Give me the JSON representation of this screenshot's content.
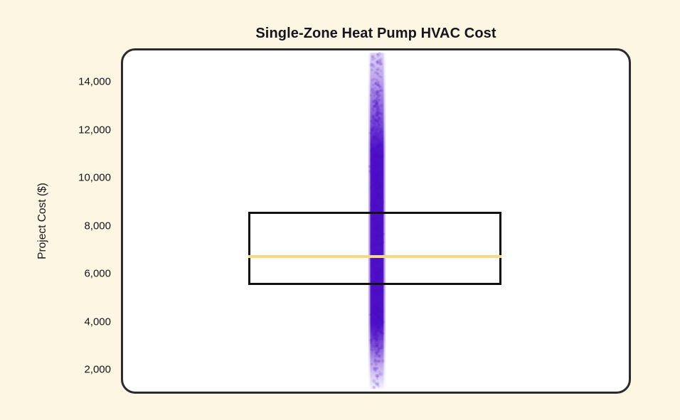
{
  "page": {
    "background": "#FDF6E3"
  },
  "chart_data": {
    "type": "box+strip",
    "title": "Single-Zone Heat Pump HVAC Cost",
    "ylabel": "Project Cost ($)",
    "ylim": [
      1000,
      15400
    ],
    "yticks": [
      2000,
      4000,
      6000,
      8000,
      10000,
      12000,
      14000
    ],
    "ytick_labels": [
      "2,000",
      "4,000",
      "6,000",
      "8,000",
      "10,000",
      "12,000",
      "14,000"
    ],
    "grid": false,
    "legend": false,
    "panel": {
      "bg": "#FFFFFF",
      "border_color": "#2B2A2E"
    },
    "box": {
      "q1": 5500,
      "median": 6700,
      "q3": 8600,
      "border_color": "#111111",
      "median_color": "#F6DA7F"
    },
    "strip": {
      "min": 1100,
      "max": 15300,
      "color": "#4A0CC6",
      "density_profile": [
        [
          15300,
          0.14
        ],
        [
          14200,
          0.3
        ],
        [
          13200,
          0.5
        ],
        [
          12200,
          0.7
        ],
        [
          11400,
          0.95
        ],
        [
          11000,
          1.0
        ],
        [
          3900,
          1.0
        ],
        [
          3400,
          0.8
        ],
        [
          2800,
          0.55
        ],
        [
          2300,
          0.35
        ],
        [
          1800,
          0.2
        ],
        [
          1300,
          0.08
        ],
        [
          1100,
          0.03
        ]
      ]
    }
  }
}
